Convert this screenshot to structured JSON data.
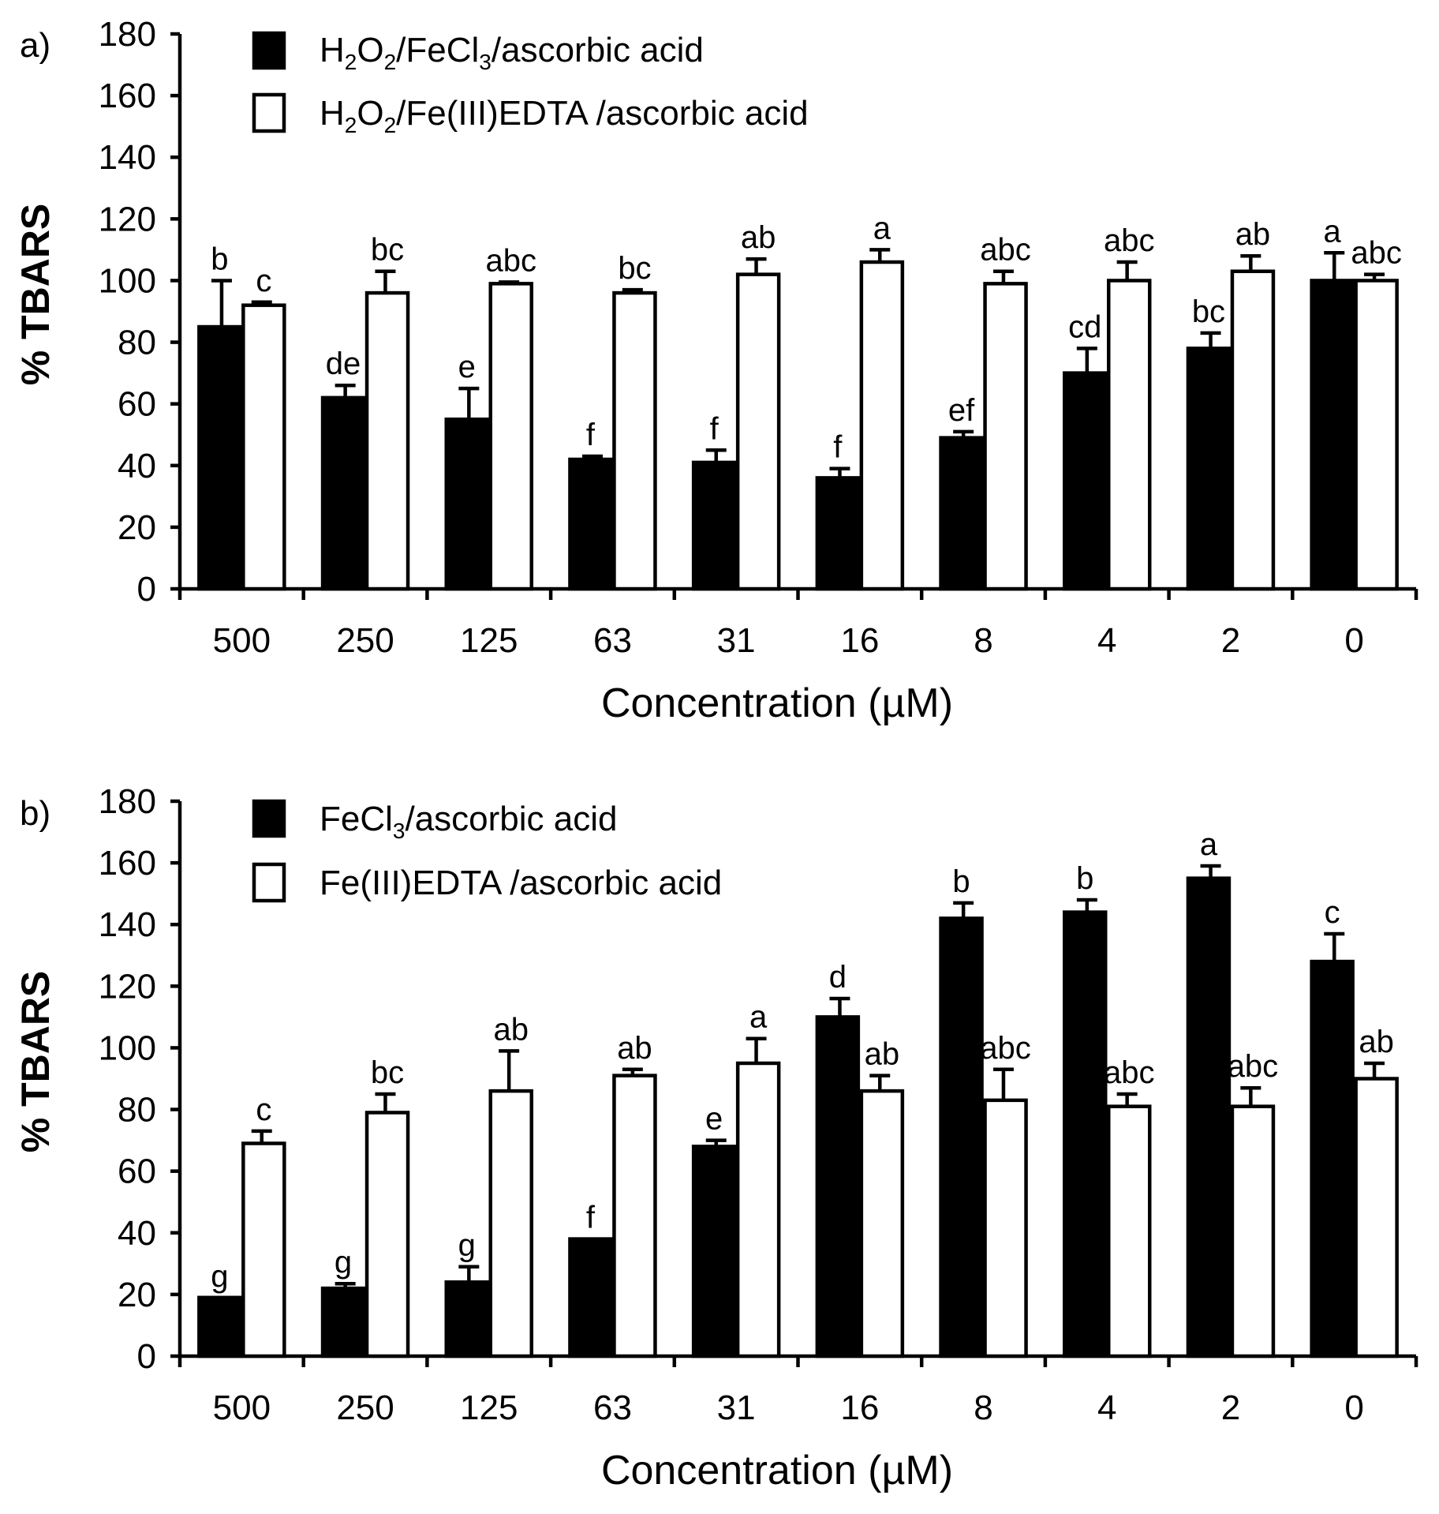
{
  "chart_data": [
    {
      "type": "bar",
      "panel_label": "a)",
      "categories": [
        "500",
        "250",
        "125",
        "63",
        "31",
        "16",
        "8",
        "4",
        "2",
        "0"
      ],
      "xlabel": "Concentration (µM)",
      "ylabel": "% TBARS",
      "ylim": [
        0,
        180
      ],
      "yticks": [
        0,
        20,
        40,
        60,
        80,
        100,
        120,
        140,
        160,
        180
      ],
      "legend_position": "top-left",
      "series": [
        {
          "name": "H2O2/FeCl3/ascorbic acid",
          "fill": "#000000",
          "values": [
            85,
            62,
            55,
            42,
            41,
            36,
            49,
            70,
            78,
            100
          ],
          "errors": [
            15,
            4,
            10,
            1,
            4,
            3,
            2,
            8,
            5,
            9
          ],
          "labels": [
            "b",
            "de",
            "e",
            "f",
            "f",
            "f",
            "ef",
            "cd",
            "bc",
            "a"
          ]
        },
        {
          "name": "H2O2/Fe(III)EDTA /ascorbic acid",
          "fill": "#ffffff",
          "values": [
            92,
            96,
            99,
            96,
            102,
            106,
            99,
            100,
            103,
            100
          ],
          "errors": [
            1,
            7,
            0.5,
            1,
            5,
            4,
            4,
            6,
            5,
            2
          ],
          "labels": [
            "c",
            "bc",
            "abc",
            "bc",
            "ab",
            "a",
            "abc",
            "abc",
            "ab",
            "abc"
          ]
        }
      ]
    },
    {
      "type": "bar",
      "panel_label": "b)",
      "categories": [
        "500",
        "250",
        "125",
        "63",
        "31",
        "16",
        "8",
        "4",
        "2",
        "0"
      ],
      "xlabel": "Concentration (µM)",
      "ylabel": "% TBARS",
      "ylim": [
        0,
        180
      ],
      "yticks": [
        0,
        20,
        40,
        60,
        80,
        100,
        120,
        140,
        160,
        180
      ],
      "legend_position": "top-left",
      "series": [
        {
          "name": "FeCl3/ascorbic acid",
          "fill": "#000000",
          "values": [
            19,
            22,
            24,
            38,
            68,
            110,
            142,
            144,
            155,
            128
          ],
          "errors": [
            0,
            1.5,
            5,
            0,
            2,
            6,
            5,
            4,
            4,
            9
          ],
          "labels": [
            "g",
            "g",
            "g",
            "f",
            "e",
            "d",
            "b",
            "b",
            "a",
            "c"
          ]
        },
        {
          "name": "Fe(III)EDTA /ascorbic acid",
          "fill": "#ffffff",
          "values": [
            69,
            79,
            86,
            91,
            95,
            86,
            83,
            81,
            81,
            90
          ],
          "errors": [
            4,
            6,
            13,
            2,
            8,
            5,
            10,
            4,
            6,
            5
          ],
          "labels": [
            "c",
            "bc",
            "ab",
            "ab",
            "a",
            "ab",
            "abc",
            "abc",
            "abc",
            "ab"
          ]
        }
      ]
    }
  ]
}
